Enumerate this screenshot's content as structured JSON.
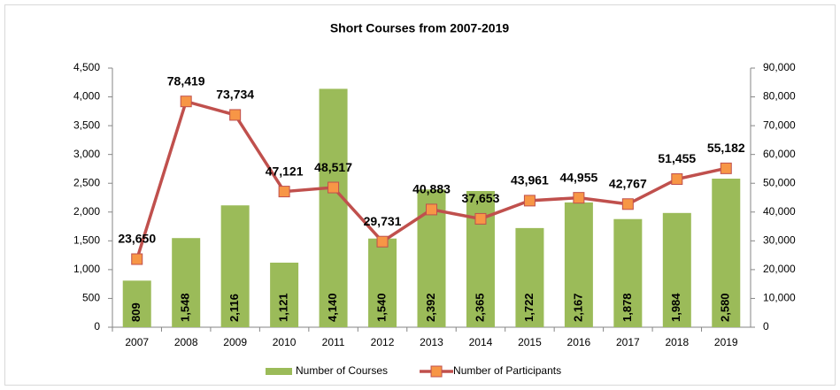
{
  "chart_data": {
    "type": "combo",
    "title": "Short Courses from 2007-2019",
    "categories": [
      "2007",
      "2008",
      "2009",
      "2010",
      "2011",
      "2012",
      "2013",
      "2014",
      "2015",
      "2016",
      "2017",
      "2018",
      "2019"
    ],
    "series": [
      {
        "name": "Number of Courses",
        "type": "bar",
        "color": "#9bbb59",
        "values": [
          809,
          1548,
          2116,
          1121,
          4140,
          1540,
          2392,
          2365,
          1722,
          2167,
          1878,
          1984,
          2580
        ],
        "value_labels": [
          "809",
          "1,548",
          "2,116",
          "1,121",
          "4,140",
          "1,540",
          "2,392",
          "2,365",
          "1,722",
          "2,167",
          "1,878",
          "1,984",
          "2,580"
        ]
      },
      {
        "name": "Number of Participants",
        "type": "line",
        "axis": "y2",
        "color": "#c0504d",
        "marker_color": "#f79646",
        "values": [
          23650,
          78419,
          73734,
          47121,
          48517,
          29731,
          40883,
          37653,
          43961,
          44955,
          42767,
          51455,
          55182
        ],
        "value_labels": [
          "23,650",
          "78,419",
          "73,734",
          "47,121",
          "48,517",
          "29,731",
          "40,883",
          "37,653",
          "43,961",
          "44,955",
          "42,767",
          "51,455",
          "55,182"
        ]
      }
    ],
    "ylim": [
      0,
      4500
    ],
    "yticks": [
      0,
      500,
      {
        "value": 1000,
        "label": "1,000"
      },
      {
        "value": 1500,
        "label": "1,500"
      },
      {
        "value": 2000,
        "label": "2,000"
      },
      {
        "value": 2500,
        "label": "2,500"
      },
      {
        "value": 3000,
        "label": "3,000"
      },
      {
        "value": 3500,
        "label": "3,500"
      },
      {
        "value": 4000,
        "label": "4,000"
      },
      {
        "value": 4500,
        "label": "4,500"
      }
    ],
    "y2lim": [
      0,
      90000
    ],
    "y2ticks": [
      0,
      {
        "value": 10000,
        "label": "10,000"
      },
      {
        "value": 20000,
        "label": "20,000"
      },
      {
        "value": 30000,
        "label": "30,000"
      },
      {
        "value": 40000,
        "label": "40,000"
      },
      {
        "value": 50000,
        "label": "50,000"
      },
      {
        "value": 60000,
        "label": "60,000"
      },
      {
        "value": 70000,
        "label": "70,000"
      },
      {
        "value": 80000,
        "label": "80,000"
      },
      {
        "value": 90000,
        "label": "90,000"
      }
    ],
    "legend": "bottom"
  }
}
